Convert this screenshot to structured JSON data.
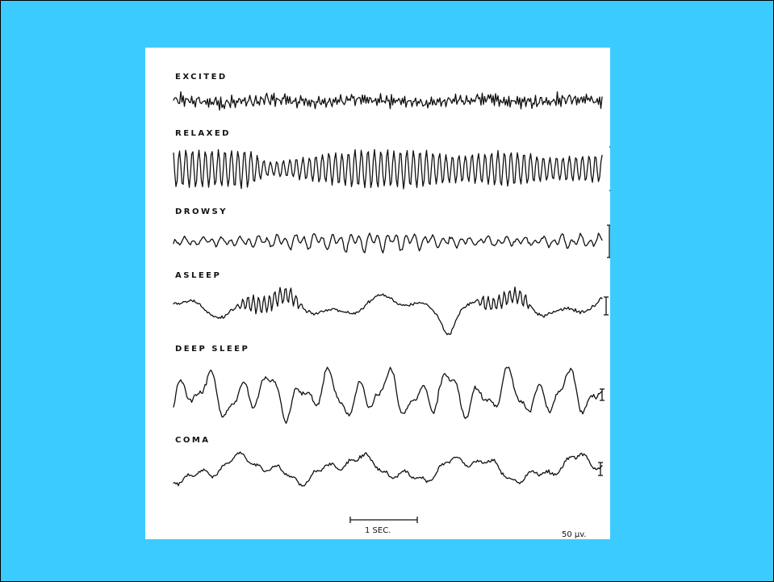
{
  "traces": [
    {
      "label": "EXCITED",
      "amplitude": 9,
      "scale_bar": 40,
      "shape": "excited"
    },
    {
      "label": "RELAXED",
      "amplitude": 23,
      "scale_bar": 54,
      "shape": "relaxed"
    },
    {
      "label": "DROWSY",
      "amplitude": 14,
      "scale_bar": 40,
      "shape": "drowsy"
    },
    {
      "label": "ASLEEP",
      "amplitude": 17,
      "scale_bar": 22,
      "shape": "asleep"
    },
    {
      "label": "DEEP SLEEP",
      "amplitude": 32,
      "scale_bar": 14,
      "shape": "deep"
    },
    {
      "label": "COMA",
      "amplitude": 20,
      "scale_bar": 16,
      "shape": "coma"
    }
  ],
  "time_scale_label": "1 SEC.",
  "voltage_scale_label": "50 µv."
}
